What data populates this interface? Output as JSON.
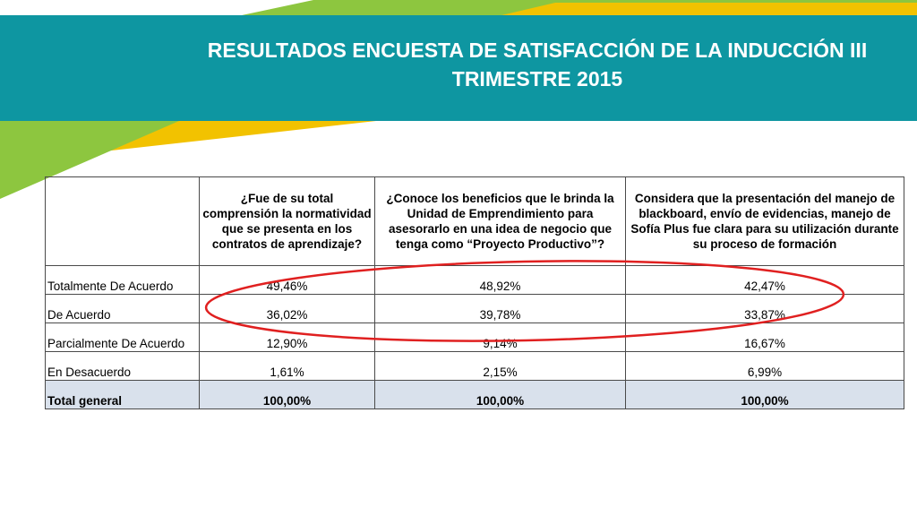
{
  "title": "RESULTADOS ENCUESTA DE SATISFACCIÓN DE LA INDUCCIÓN III TRIMESTRE 2015",
  "colors": {
    "banner": "#0e96a1",
    "accent_green": "#8dc63f",
    "accent_yellow": "#f2c200",
    "highlight_oval": "#e02020",
    "total_row": "#d9e1ec"
  },
  "table": {
    "corner": "",
    "headers": [
      "¿Fue de su total comprensión la normatividad que se presenta en los contratos de aprendizaje?",
      "¿Conoce los beneficios que le brinda la Unidad de Emprendimiento para asesorarlo en una idea de negocio que tenga como “Proyecto Productivo”?",
      "Considera que la presentación del manejo de blackboard, envío de evidencias, manejo de Sofía Plus  fue clara para su utilización durante su proceso de formación"
    ],
    "rows": [
      {
        "label": "Totalmente De Acuerdo",
        "values": [
          "49,46%",
          "48,92%",
          "42,47%"
        ]
      },
      {
        "label": "De Acuerdo",
        "values": [
          "36,02%",
          "39,78%",
          "33,87%"
        ]
      },
      {
        "label": "Parcialmente De Acuerdo",
        "values": [
          "12,90%",
          "9,14%",
          "16,67%"
        ]
      },
      {
        "label": "En Desacuerdo",
        "values": [
          "1,61%",
          "2,15%",
          "6,99%"
        ]
      }
    ],
    "total": {
      "label": "Total general",
      "values": [
        "100,00%",
        "100,00%",
        "100,00%"
      ]
    }
  }
}
